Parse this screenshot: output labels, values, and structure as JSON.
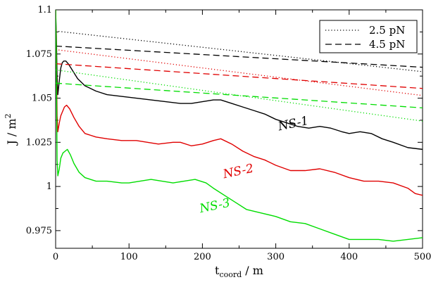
{
  "chart_data": {
    "type": "line",
    "title": "",
    "xlabel": {
      "main": "t",
      "sub": "coord",
      "unit": " / m"
    },
    "ylabel": {
      "main": "J / m",
      "sup": "2"
    },
    "xlim": [
      0,
      500
    ],
    "ylim": [
      0.965,
      1.1
    ],
    "xticks": [
      0,
      100,
      200,
      300,
      400,
      500
    ],
    "yticks": [
      0.975,
      1,
      1.025,
      1.05,
      1.075,
      1.1
    ],
    "ytick_labels": [
      "0.975",
      "1",
      "1.025",
      "1.05",
      "1.075",
      "1.1"
    ],
    "grid": false,
    "legend": {
      "position": "top-right",
      "entries": [
        {
          "label": "2.5 pN",
          "dash": "dotted"
        },
        {
          "label": "4.5 pN",
          "dash": "dashed"
        }
      ]
    },
    "colors": {
      "NS-1": "#000000",
      "NS-2": "#e00000",
      "NS-3": "#00dd00"
    },
    "series": [
      {
        "name": "NS-1",
        "style": "solid",
        "color": "#000000",
        "x": [
          0,
          1,
          2,
          3,
          5,
          7,
          9,
          11,
          14,
          18,
          24,
          30,
          40,
          55,
          70,
          90,
          110,
          130,
          150,
          170,
          185,
          200,
          215,
          225,
          240,
          255,
          270,
          285,
          300,
          315,
          330,
          345,
          360,
          375,
          390,
          400,
          415,
          430,
          445,
          460,
          480,
          500
        ],
        "y": [
          1.1,
          1.085,
          1.062,
          1.052,
          1.06,
          1.067,
          1.07,
          1.071,
          1.071,
          1.069,
          1.065,
          1.061,
          1.057,
          1.054,
          1.052,
          1.051,
          1.05,
          1.049,
          1.048,
          1.047,
          1.047,
          1.048,
          1.049,
          1.049,
          1.047,
          1.045,
          1.043,
          1.041,
          1.038,
          1.036,
          1.034,
          1.033,
          1.034,
          1.033,
          1.031,
          1.03,
          1.031,
          1.03,
          1.027,
          1.025,
          1.022,
          1.021
        ],
        "label_at": [
          325,
          1.0335
        ]
      },
      {
        "name": "2.5 pN (NS-1)",
        "style": "dotted",
        "color": "#000000",
        "x": [
          0,
          500
        ],
        "y": [
          1.088,
          1.065
        ]
      },
      {
        "name": "4.5 pN (NS-1)",
        "style": "dashed",
        "color": "#000000",
        "x": [
          0,
          500
        ],
        "y": [
          1.0795,
          1.0675
        ]
      },
      {
        "name": "NS-2",
        "style": "solid",
        "color": "#e00000",
        "x": [
          0,
          1,
          2,
          3,
          5,
          7,
          9,
          12,
          15,
          19,
          25,
          32,
          40,
          55,
          70,
          90,
          110,
          125,
          140,
          160,
          170,
          185,
          200,
          215,
          225,
          240,
          255,
          270,
          285,
          300,
          320,
          340,
          360,
          380,
          400,
          420,
          440,
          460,
          480,
          490,
          500
        ],
        "y": [
          1.1,
          1.075,
          1.04,
          1.031,
          1.036,
          1.04,
          1.042,
          1.045,
          1.046,
          1.044,
          1.039,
          1.034,
          1.03,
          1.028,
          1.027,
          1.026,
          1.026,
          1.025,
          1.024,
          1.025,
          1.025,
          1.023,
          1.024,
          1.026,
          1.027,
          1.024,
          1.02,
          1.017,
          1.015,
          1.012,
          1.009,
          1.009,
          1.01,
          1.008,
          1.005,
          1.003,
          1.003,
          1.002,
          0.999,
          0.996,
          0.995
        ],
        "label_at": [
          250,
          1.0065
        ]
      },
      {
        "name": "2.5 pN (NS-2)",
        "style": "dotted",
        "color": "#e00000",
        "x": [
          0,
          500
        ],
        "y": [
          1.0775,
          1.0515
        ]
      },
      {
        "name": "4.5 pN (NS-2)",
        "style": "dashed",
        "color": "#e00000",
        "x": [
          0,
          500
        ],
        "y": [
          1.0695,
          1.0555
        ]
      },
      {
        "name": "NS-3",
        "style": "solid",
        "color": "#00dd00",
        "x": [
          0,
          1,
          2,
          3,
          5,
          7,
          10,
          13,
          16,
          20,
          25,
          32,
          40,
          55,
          70,
          90,
          100,
          115,
          130,
          145,
          160,
          175,
          190,
          205,
          215,
          230,
          245,
          260,
          280,
          300,
          320,
          340,
          360,
          380,
          400,
          420,
          440,
          460,
          480,
          500
        ],
        "y": [
          1.1,
          1.07,
          1.015,
          1.006,
          1.01,
          1.016,
          1.019,
          1.02,
          1.021,
          1.018,
          1.013,
          1.008,
          1.005,
          1.003,
          1.003,
          1.002,
          1.002,
          1.003,
          1.004,
          1.003,
          1.002,
          1.003,
          1.004,
          1.002,
          0.999,
          0.995,
          0.991,
          0.987,
          0.985,
          0.983,
          0.98,
          0.979,
          0.976,
          0.973,
          0.97,
          0.97,
          0.97,
          0.969,
          0.97,
          0.971
        ],
        "label_at": [
          218,
          0.987
        ]
      },
      {
        "name": "2.5 pN (NS-3)",
        "style": "dotted",
        "color": "#00dd00",
        "x": [
          0,
          500
        ],
        "y": [
          1.066,
          1.037
        ]
      },
      {
        "name": "4.5 pN (NS-3)",
        "style": "dashed",
        "color": "#00dd00",
        "x": [
          0,
          500
        ],
        "y": [
          1.0585,
          1.0445
        ]
      }
    ]
  }
}
